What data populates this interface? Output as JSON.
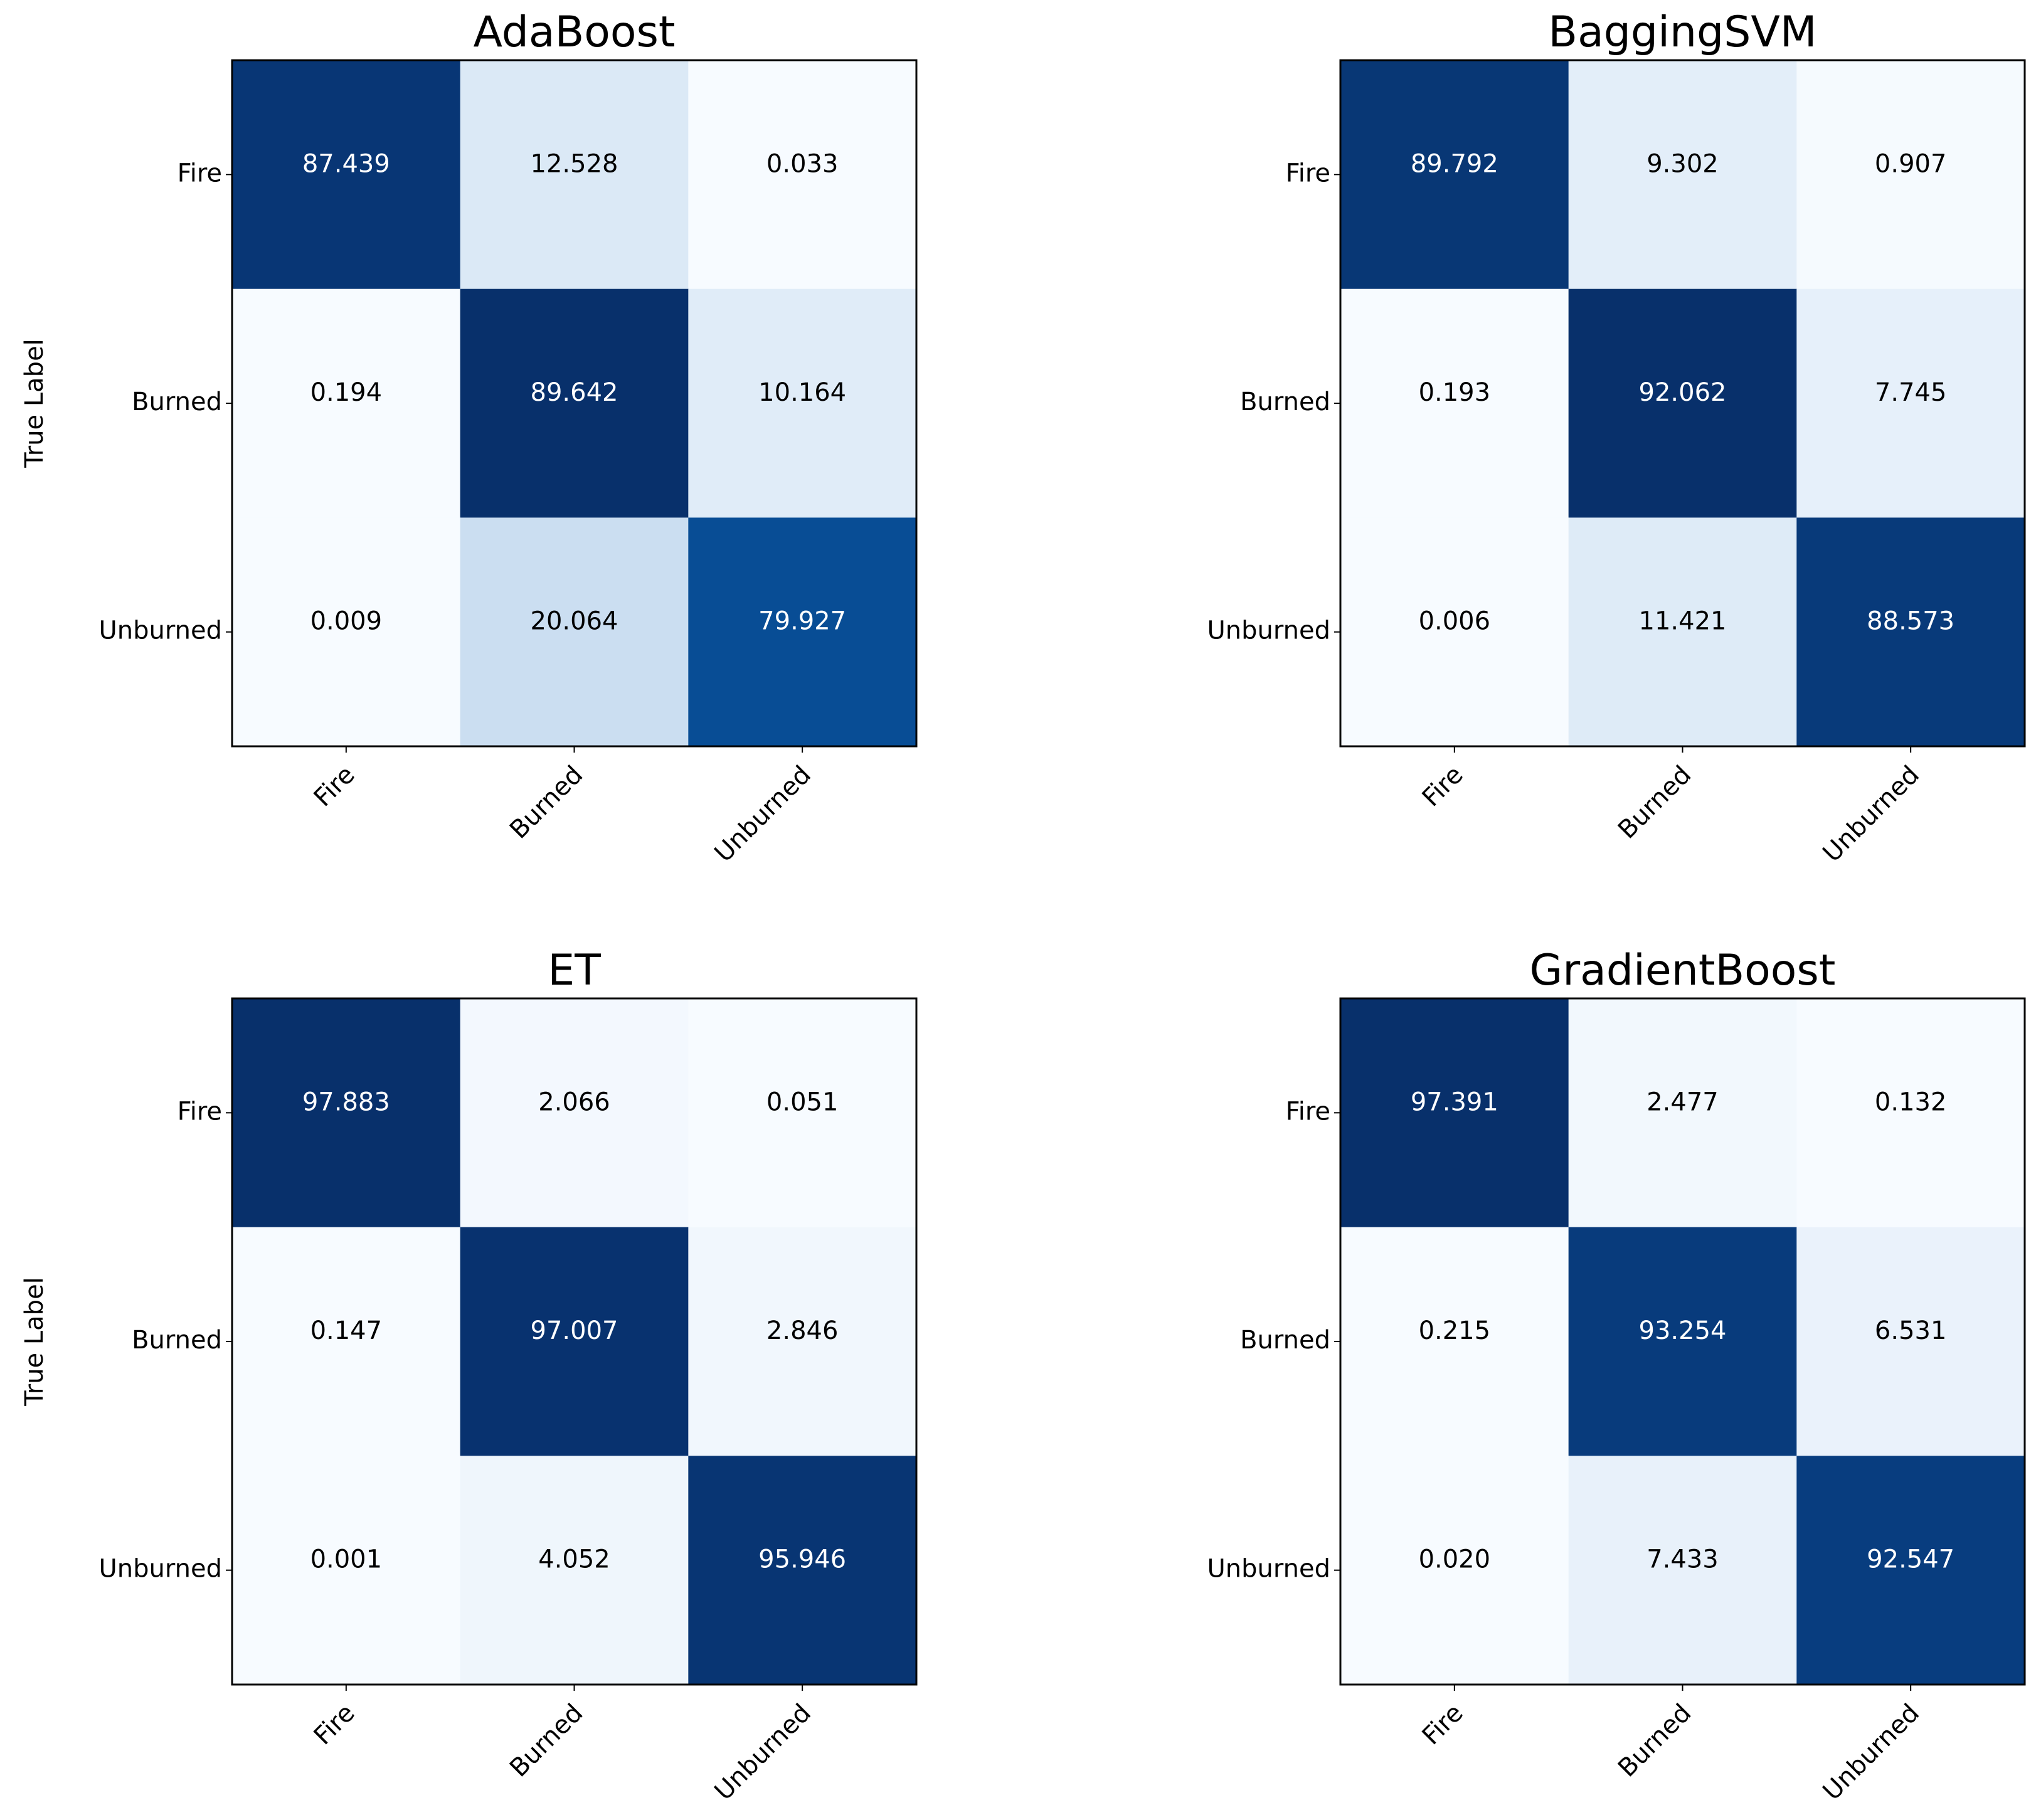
{
  "chart_data": [
    {
      "type": "heatmap",
      "title": "AdaBoost",
      "ylabel": "True Label",
      "x_categories": [
        "Fire",
        "Burned",
        "Unburned"
      ],
      "y_categories": [
        "Fire",
        "Burned",
        "Unburned"
      ],
      "values": [
        [
          87.439,
          12.528,
          0.033
        ],
        [
          0.194,
          89.642,
          10.164
        ],
        [
          0.009,
          20.064,
          79.927
        ]
      ],
      "colormap": "Blues"
    },
    {
      "type": "heatmap",
      "title": "BaggingSVM",
      "x_categories": [
        "Fire",
        "Burned",
        "Unburned"
      ],
      "y_categories": [
        "Fire",
        "Burned",
        "Unburned"
      ],
      "values": [
        [
          89.792,
          9.302,
          0.907
        ],
        [
          0.193,
          92.062,
          7.745
        ],
        [
          0.006,
          11.421,
          88.573
        ]
      ],
      "colormap": "Blues"
    },
    {
      "type": "heatmap",
      "title": "ET",
      "ylabel": "True Label",
      "x_categories": [
        "Fire",
        "Burned",
        "Unburned"
      ],
      "y_categories": [
        "Fire",
        "Burned",
        "Unburned"
      ],
      "values": [
        [
          97.883,
          2.066,
          0.051
        ],
        [
          0.147,
          97.007,
          2.846
        ],
        [
          0.001,
          4.052,
          95.946
        ]
      ],
      "colormap": "Blues"
    },
    {
      "type": "heatmap",
      "title": "GradientBoost",
      "x_categories": [
        "Fire",
        "Burned",
        "Unburned"
      ],
      "y_categories": [
        "Fire",
        "Burned",
        "Unburned"
      ],
      "values": [
        [
          97.391,
          2.477,
          0.132
        ],
        [
          0.215,
          93.254,
          6.531
        ],
        [
          0.02,
          7.433,
          92.547
        ]
      ],
      "value_labels": [
        [
          "97.391",
          "2.477",
          "0.132"
        ],
        [
          "0.215",
          "93.254",
          "6.531"
        ],
        [
          "0.020",
          "7.433",
          "92.547"
        ]
      ],
      "colormap": "Blues"
    }
  ]
}
